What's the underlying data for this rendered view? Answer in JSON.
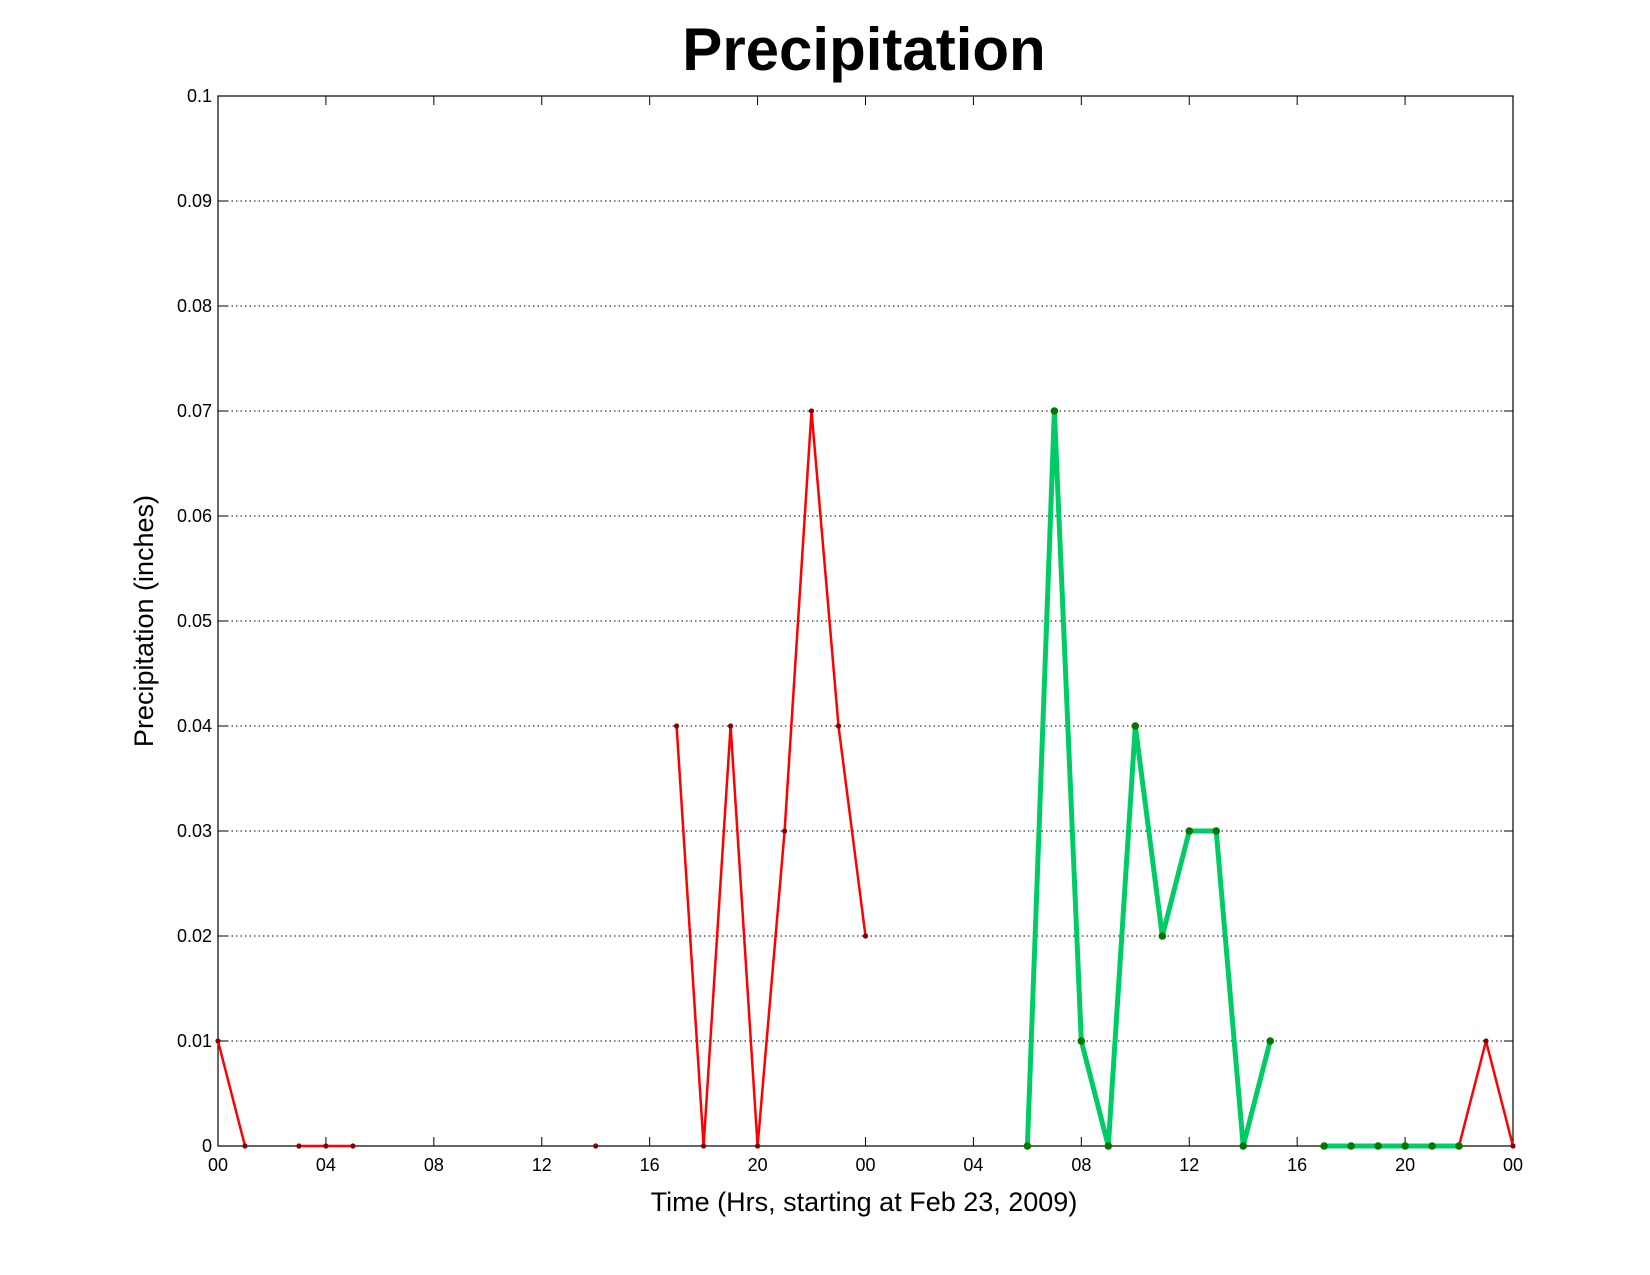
{
  "chart_data": {
    "type": "line",
    "title": "Precipitation",
    "xlabel": "Time (Hrs, starting at Feb 23, 2009)",
    "ylabel": "Precipitation (inches)",
    "xlim": [
      0,
      48
    ],
    "ylim": [
      0,
      0.1
    ],
    "grid": "y",
    "x_ticks": [
      0,
      4,
      8,
      12,
      16,
      20,
      24,
      28,
      32,
      36,
      40,
      44,
      48
    ],
    "x_tick_labels": [
      "00",
      "04",
      "08",
      "12",
      "16",
      "20",
      "00",
      "04",
      "08",
      "12",
      "16",
      "20",
      "00"
    ],
    "y_ticks": [
      0,
      0.01,
      0.02,
      0.03,
      0.04,
      0.05,
      0.06,
      0.07,
      0.08,
      0.09,
      0.1
    ],
    "y_tick_labels": [
      "0",
      "0.01",
      "0.02",
      "0.03",
      "0.04",
      "0.05",
      "0.06",
      "0.07",
      "0.08",
      "0.09",
      "0.1"
    ],
    "series": [
      {
        "color": "#ff0000",
        "marker_color": "#8b0000",
        "line_width": 2.5,
        "segments": [
          [
            [
              0,
              0.01
            ],
            [
              1,
              0
            ]
          ],
          [
            [
              3,
              0
            ],
            [
              4,
              0
            ],
            [
              5,
              0
            ]
          ],
          [
            [
              14,
              0
            ]
          ],
          [
            [
              17,
              0.04
            ],
            [
              18,
              0
            ],
            [
              19,
              0.04
            ],
            [
              20,
              0
            ],
            [
              21,
              0.03
            ],
            [
              22,
              0.07
            ],
            [
              23,
              0.04
            ],
            [
              24,
              0.02
            ]
          ],
          [
            [
              46,
              0
            ],
            [
              47,
              0.01
            ],
            [
              48,
              0
            ]
          ]
        ]
      },
      {
        "color": "#00cc66",
        "marker_color": "#007700",
        "line_width": 5,
        "segments": [
          [
            [
              30,
              0
            ],
            [
              31,
              0.07
            ],
            [
              32,
              0.01
            ],
            [
              33,
              0
            ],
            [
              34,
              0.04
            ],
            [
              35,
              0.02
            ],
            [
              36,
              0.03
            ],
            [
              37,
              0.03
            ],
            [
              38,
              0
            ],
            [
              39,
              0.01
            ]
          ],
          [
            [
              41,
              0
            ],
            [
              42,
              0
            ],
            [
              43,
              0
            ],
            [
              44,
              0
            ],
            [
              45,
              0
            ],
            [
              46,
              0
            ]
          ]
        ]
      }
    ]
  }
}
